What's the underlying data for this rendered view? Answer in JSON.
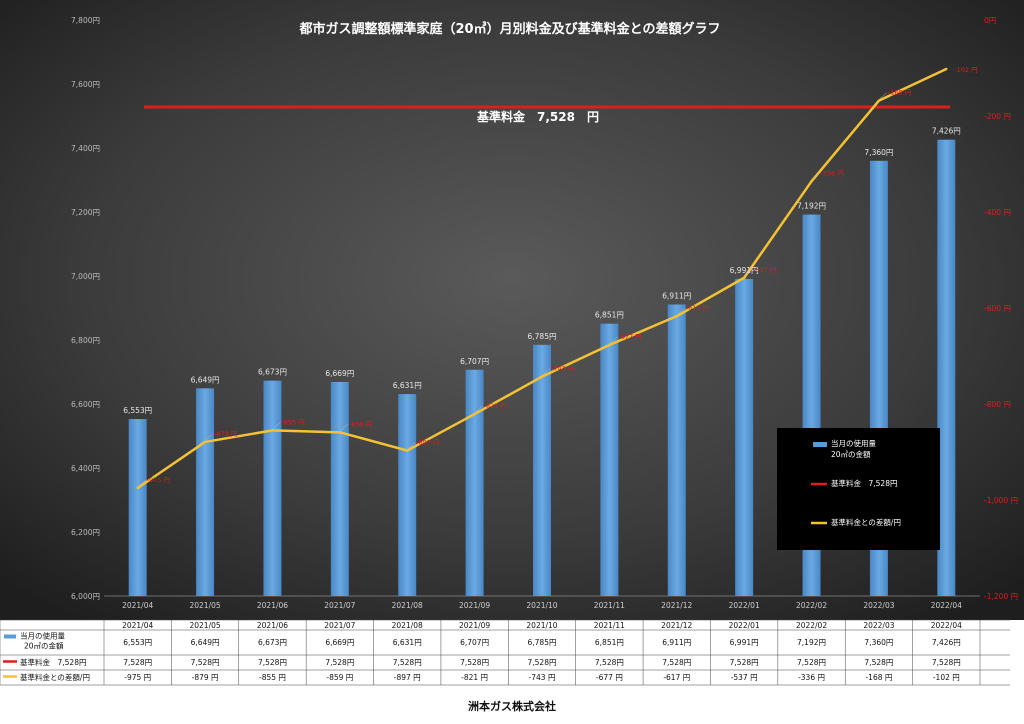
{
  "footer": "洲本ガス株式会社",
  "colors": {
    "bar": "#5b9bd5",
    "reference": "#e21b1b",
    "diff": "#f5c233"
  },
  "chart_data": {
    "type": "bar",
    "title": "都市ガス調整額標準家庭（20㎥）月別料金及び基準料金との差額グラフ",
    "categories": [
      "2021/04",
      "2021/05",
      "2021/06",
      "2021/07",
      "2021/08",
      "2021/09",
      "2021/10",
      "2021/11",
      "2021/12",
      "2022/01",
      "2022/02",
      "2022/03",
      "2022/04"
    ],
    "bar_labels": [
      "6,553円",
      "6,649円",
      "6,673円",
      "6,669円",
      "6,631円",
      "6,707円",
      "6,785円",
      "6,851円",
      "6,911円",
      "6,991円",
      "7,192円",
      "7,360円",
      "7,426円"
    ],
    "diff_labels": [
      "-975 円",
      "-879 円",
      "-855 円",
      "-859 円",
      "-897 円",
      "-821 円",
      "-743 円",
      "-677 円",
      "-617 円",
      "-537 円",
      "-336 円",
      "-168 円",
      "-102 円"
    ],
    "reference_label": "基準料金　7,528　円",
    "series": [
      {
        "name": "当月の使用量 20㎥の金額",
        "type": "bar",
        "axis": "left",
        "values": [
          6553,
          6649,
          6673,
          6669,
          6631,
          6707,
          6785,
          6851,
          6911,
          6991,
          7192,
          7360,
          7426
        ]
      },
      {
        "name": "基準料金　7,528円",
        "type": "line",
        "axis": "left",
        "values": [
          7528,
          7528,
          7528,
          7528,
          7528,
          7528,
          7528,
          7528,
          7528,
          7528,
          7528,
          7528,
          7528
        ]
      },
      {
        "name": "基準料金との差額/円",
        "type": "line",
        "axis": "right",
        "values": [
          -975,
          -879,
          -855,
          -859,
          -897,
          -821,
          -743,
          -677,
          -617,
          -537,
          -336,
          -168,
          -102
        ]
      }
    ],
    "y_left": {
      "min": 6000,
      "max": 7800,
      "ticks": [
        6000,
        6200,
        6400,
        6600,
        6800,
        7000,
        7200,
        7400,
        7600,
        7800
      ],
      "tick_labels": [
        "6,000円",
        "6,200円",
        "6,400円",
        "6,600円",
        "6,800円",
        "7,000円",
        "7,200円",
        "7,400円",
        "7,600円",
        "7,800円"
      ]
    },
    "y_right": {
      "min": -1200,
      "max": 0,
      "ticks": [
        -1200,
        -1000,
        -800,
        -600,
        -400,
        -200,
        0
      ],
      "tick_labels": [
        "-1,200 円",
        "-1,000 円",
        "-800 円",
        "-600 円",
        "-400 円",
        "-200 円",
        "0円"
      ]
    },
    "legend": {
      "position": "bottom-right",
      "items": [
        {
          "kind": "bar",
          "lines": [
            "当月の使用量",
            "20㎥の金額"
          ]
        },
        {
          "kind": "reference",
          "lines": [
            "基準料金　7,528円"
          ]
        },
        {
          "kind": "diff",
          "lines": [
            "基準料金との差額/円"
          ]
        }
      ]
    },
    "table": {
      "rows": [
        {
          "kind": "bar",
          "label_lines": [
            "当月の使用量",
            "20㎥の金額"
          ],
          "values": [
            "6,553円",
            "6,649円",
            "6,673円",
            "6,669円",
            "6,631円",
            "6,707円",
            "6,785円",
            "6,851円",
            "6,911円",
            "6,991円",
            "7,192円",
            "7,360円",
            "7,426円"
          ]
        },
        {
          "kind": "reference",
          "label_lines": [
            "基準料金　7,528円"
          ],
          "values": [
            "7,528円",
            "7,528円",
            "7,528円",
            "7,528円",
            "7,528円",
            "7,528円",
            "7,528円",
            "7,528円",
            "7,528円",
            "7,528円",
            "7,528円",
            "7,528円",
            "7,528円"
          ]
        },
        {
          "kind": "diff",
          "label_lines": [
            "基準料金との差額/円"
          ],
          "values": [
            "-975 円",
            "-879 円",
            "-855 円",
            "-859 円",
            "-897 円",
            "-821 円",
            "-743 円",
            "-677 円",
            "-617 円",
            "-537 円",
            "-336 円",
            "-168 円",
            "-102 円"
          ]
        }
      ]
    },
    "grid": false
  }
}
